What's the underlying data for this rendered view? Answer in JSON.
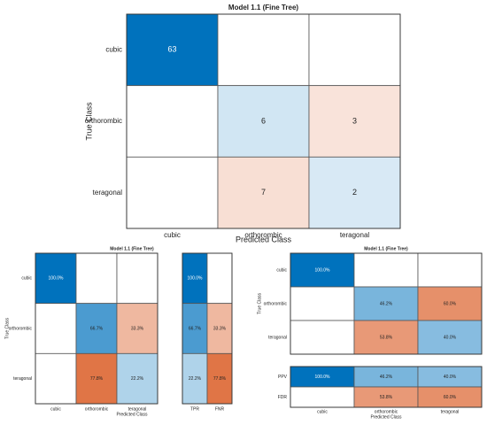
{
  "chart_data": [
    {
      "type": "heatmap",
      "id": "main",
      "title": "Model 1.1 (Fine Tree)",
      "xlabel": "Predicted Class",
      "ylabel": "True Class",
      "rows": [
        "cubic",
        "orthorombic",
        "teragonal"
      ],
      "cols": [
        "cubic",
        "orthorombic",
        "teragonal"
      ],
      "values": [
        [
          63,
          null,
          null
        ],
        [
          null,
          6,
          3
        ],
        [
          null,
          7,
          2
        ]
      ],
      "labels": [
        [
          "63",
          "",
          ""
        ],
        [
          "",
          "6",
          "3"
        ],
        [
          "",
          "7",
          "2"
        ]
      ]
    },
    {
      "type": "heatmap",
      "id": "row-normalized",
      "title": "Model 1.1 (Fine Tree)",
      "xlabel": "Predicted Class",
      "ylabel": "True Class",
      "rows": [
        "cubic",
        "orthorombic",
        "teragonal"
      ],
      "cols": [
        "cubic",
        "orthorombic",
        "teragonal"
      ],
      "values": [
        [
          100.0,
          null,
          null
        ],
        [
          null,
          66.7,
          33.3
        ],
        [
          null,
          77.8,
          22.2
        ]
      ],
      "labels": [
        [
          "100.0%",
          "",
          ""
        ],
        [
          "",
          "66.7%",
          "33.3%"
        ],
        [
          "",
          "77.8%",
          "22.2%"
        ]
      ]
    },
    {
      "type": "heatmap",
      "id": "tpr-fnr",
      "cols": [
        "TPR",
        "FNR"
      ],
      "values": [
        [
          100.0,
          null
        ],
        [
          66.7,
          33.3
        ],
        [
          22.2,
          77.8
        ]
      ],
      "labels": [
        [
          "100.0%",
          ""
        ],
        [
          "66.7%",
          "33.3%"
        ],
        [
          "22.2%",
          "77.8%"
        ]
      ]
    },
    {
      "type": "heatmap",
      "id": "col-normalized",
      "title": "Model 1.1 (Fine Tree)",
      "ylabel": "True Class",
      "rows": [
        "cubic",
        "orthorombic",
        "teragonal"
      ],
      "values": [
        [
          100.0,
          null,
          null
        ],
        [
          null,
          46.2,
          60.0
        ],
        [
          null,
          53.8,
          40.0
        ]
      ],
      "labels": [
        [
          "100.0%",
          "",
          ""
        ],
        [
          "",
          "46.2%",
          "60.0%"
        ],
        [
          "",
          "53.8%",
          "40.0%"
        ]
      ]
    },
    {
      "type": "heatmap",
      "id": "ppv-fdr",
      "xlabel": "Predicted Class",
      "rows": [
        "PPV",
        "FDR"
      ],
      "cols": [
        "cubic",
        "orthorombic",
        "teragonal"
      ],
      "values": [
        [
          100.0,
          46.2,
          40.0
        ],
        [
          null,
          53.8,
          60.0
        ]
      ],
      "labels": [
        [
          "100.0%",
          "46.2%",
          "40.0%"
        ],
        [
          "",
          "53.8%",
          "60.0%"
        ]
      ]
    }
  ],
  "colors": {
    "blue_diag": "#0072bd",
    "orange_off": "#d95319",
    "empty": "#ffffff",
    "grid": "#555555"
  }
}
